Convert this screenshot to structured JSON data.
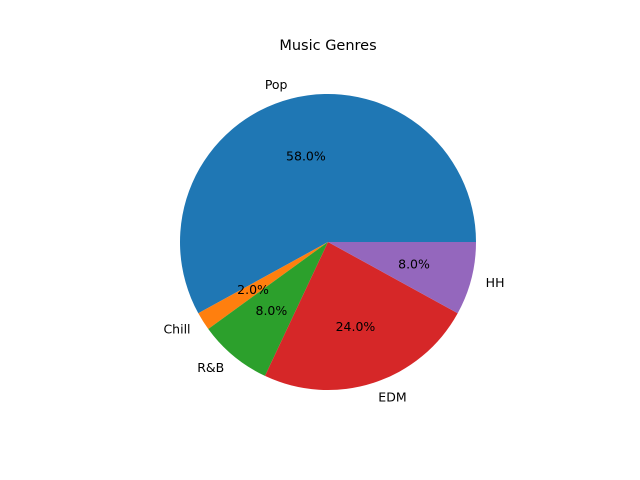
{
  "chart_data": {
    "type": "pie",
    "title": "Music Genres",
    "categories": [
      "Pop",
      "Chill",
      "R&B",
      "EDM",
      "HH"
    ],
    "values": [
      58.0,
      2.0,
      8.0,
      24.0,
      8.0
    ],
    "percent_labels": [
      "58.0%",
      "2.0%",
      "8.0%",
      "24.0%",
      "8.0%"
    ],
    "colors": [
      "#1f77b4",
      "#ff7f0e",
      "#2ca02c",
      "#d62728",
      "#9467bd"
    ],
    "start_angle_deg": 0,
    "direction": "counterclockwise"
  }
}
